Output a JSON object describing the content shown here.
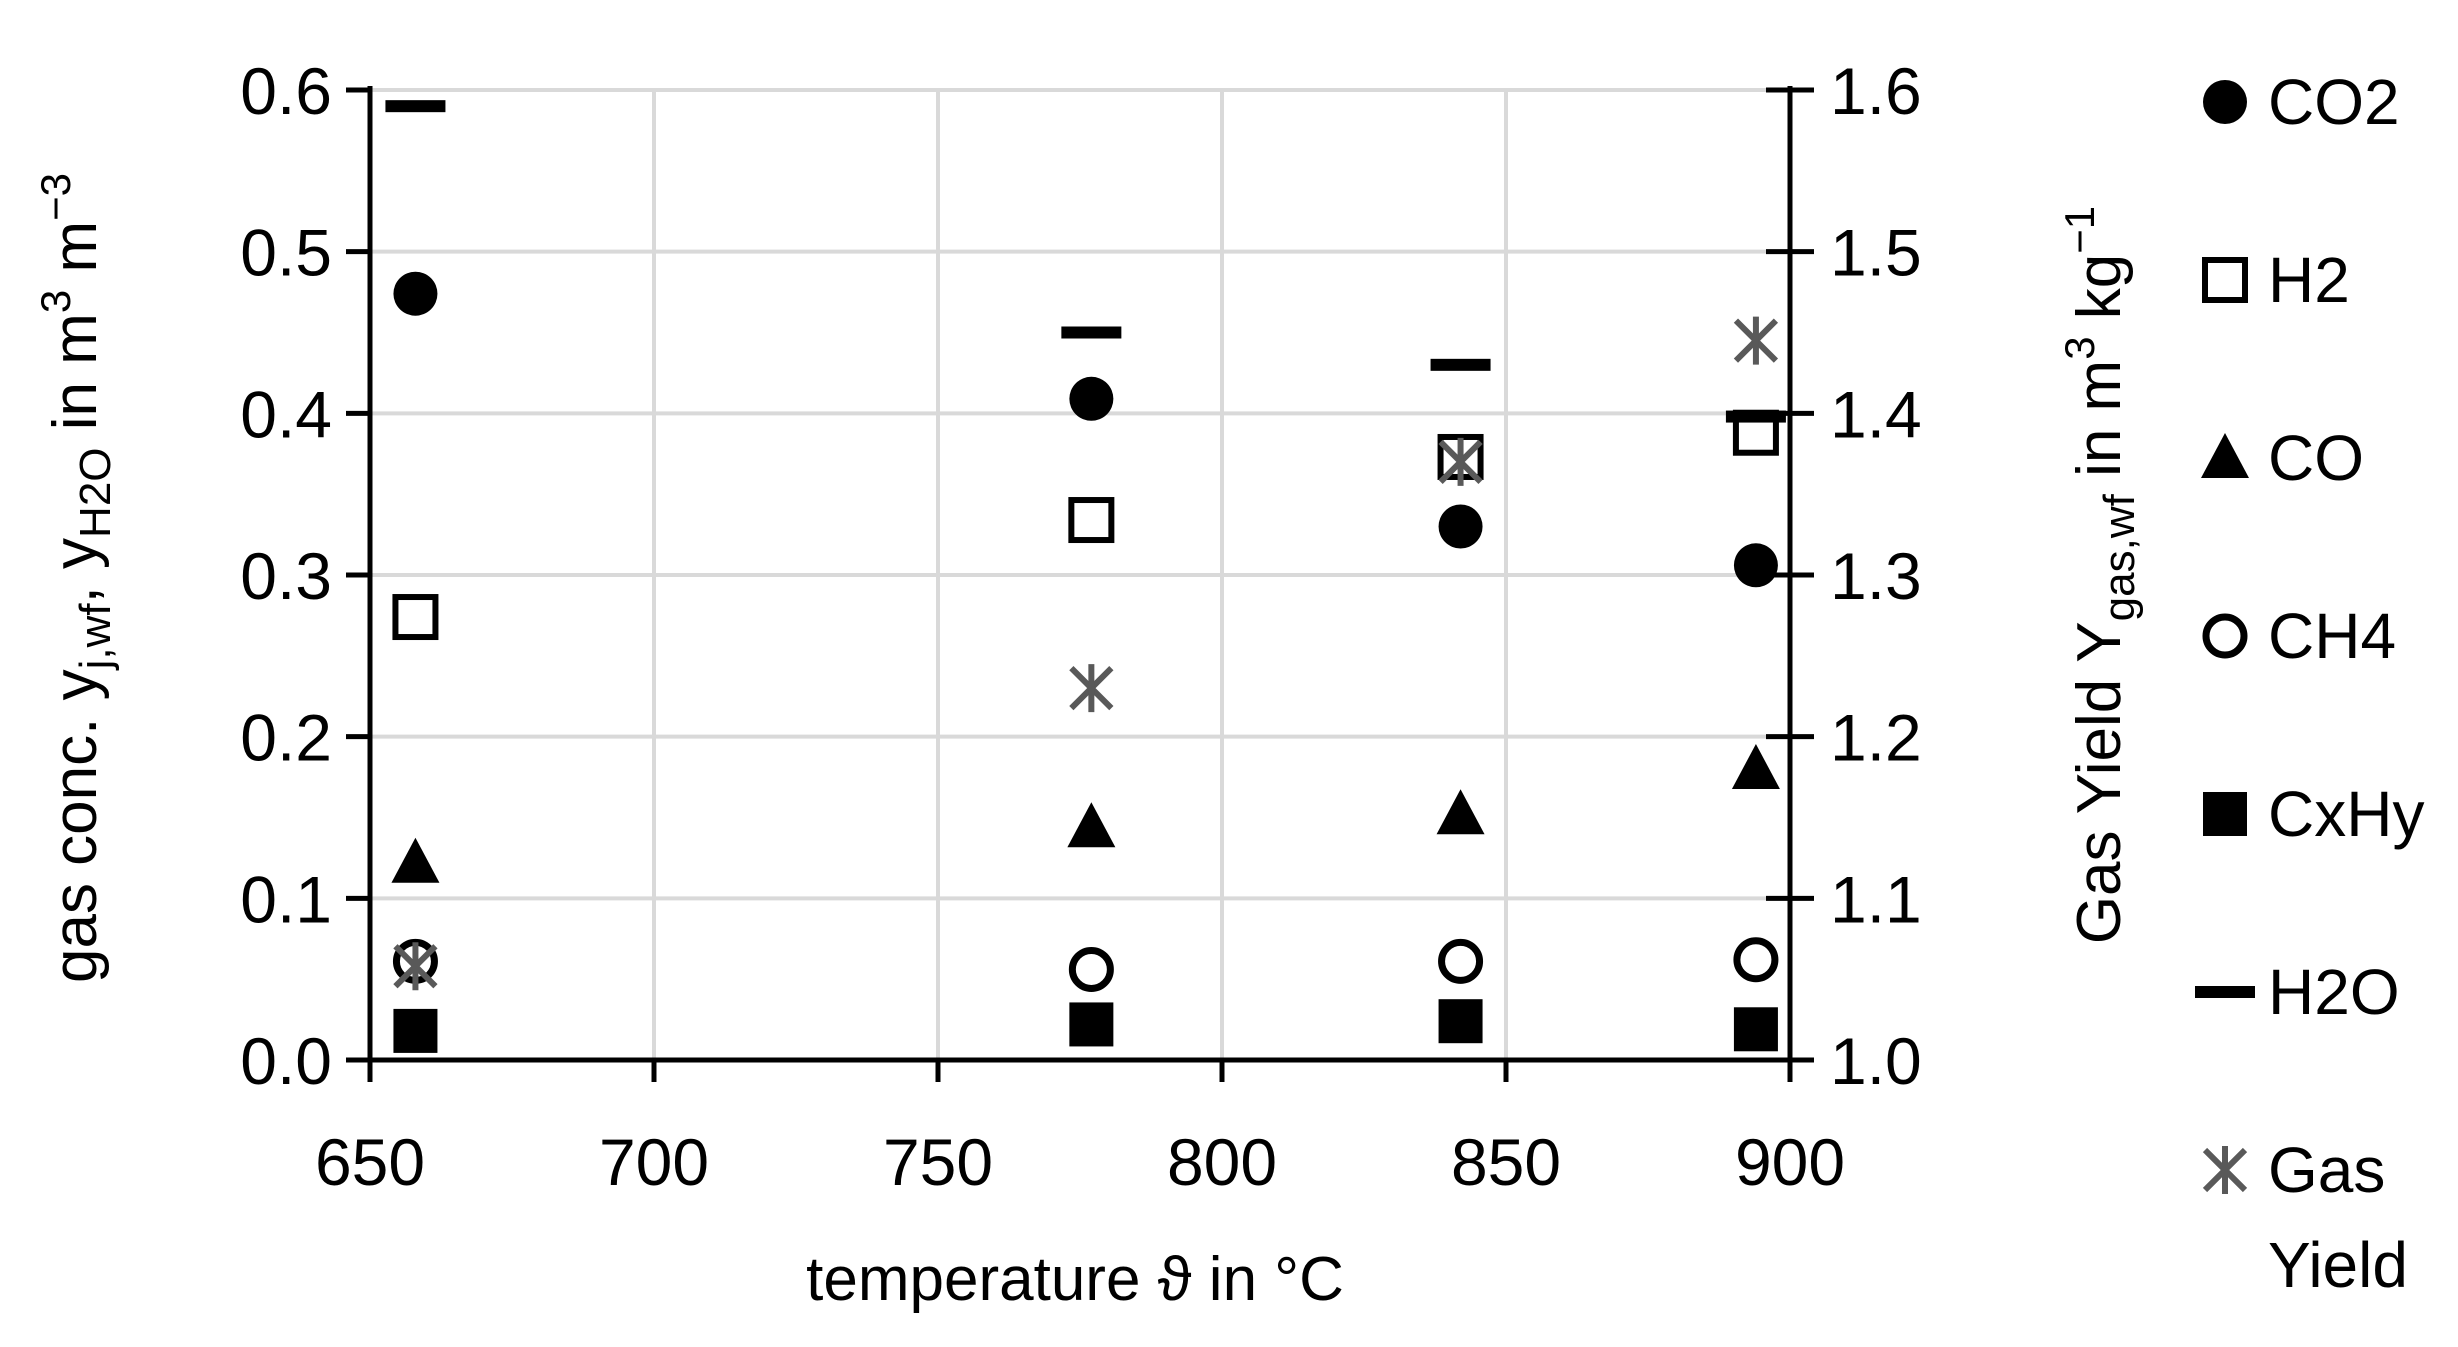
{
  "chart_data": {
    "type": "scatter",
    "xlabel": "temperature ϑ in °C",
    "ylabel_left": {
      "parts": [
        "gas conc. y",
        "j,wf",
        ",  y",
        "H2O",
        " in m",
        "3",
        " m",
        "−3"
      ]
    },
    "ylabel_right": {
      "parts": [
        "Gas Yield Y",
        "gas,wf",
        " in m",
        "3",
        " kg",
        "−1"
      ]
    },
    "xlim": [
      650,
      900
    ],
    "ylim_left": [
      0.0,
      0.6
    ],
    "ylim_right": [
      1.0,
      1.6
    ],
    "x_ticks": [
      "650",
      "700",
      "750",
      "800",
      "850",
      "900"
    ],
    "y_left_ticks": [
      "0.0",
      "0.1",
      "0.2",
      "0.3",
      "0.4",
      "0.5",
      "0.6"
    ],
    "y_right_ticks": [
      "1.0",
      "1.1",
      "1.2",
      "1.3",
      "1.4",
      "1.5",
      "1.6"
    ],
    "grid": true,
    "legend_position": "right",
    "series": [
      {
        "name": "CO2",
        "marker": "filled-circle",
        "axis": "left",
        "color": "#000000",
        "x": [
          658,
          777,
          842,
          894
        ],
        "y": [
          0.474,
          0.409,
          0.33,
          0.306
        ]
      },
      {
        "name": "H2",
        "marker": "open-square",
        "axis": "left",
        "color": "#000000",
        "x": [
          658,
          777,
          842,
          894
        ],
        "y": [
          0.274,
          0.334,
          0.373,
          0.388
        ]
      },
      {
        "name": "CO",
        "marker": "filled-triangle",
        "axis": "left",
        "color": "#000000",
        "x": [
          658,
          777,
          842,
          894
        ],
        "y": [
          0.122,
          0.144,
          0.152,
          0.18
        ]
      },
      {
        "name": "CH4",
        "marker": "open-circle",
        "axis": "left",
        "color": "#000000",
        "x": [
          658,
          777,
          842,
          894
        ],
        "y": [
          0.061,
          0.056,
          0.061,
          0.062
        ]
      },
      {
        "name": "CxHy",
        "marker": "filled-square",
        "axis": "left",
        "color": "#000000",
        "x": [
          658,
          777,
          842,
          894
        ],
        "y": [
          0.018,
          0.022,
          0.024,
          0.019
        ]
      },
      {
        "name": "H2O",
        "marker": "dash",
        "axis": "left",
        "color": "#000000",
        "x": [
          658,
          777,
          842,
          894
        ],
        "y": [
          0.59,
          0.45,
          0.43,
          0.398
        ]
      },
      {
        "name": "Gas Yield",
        "legend_lines": [
          "Gas",
          "Yield"
        ],
        "marker": "star",
        "axis": "right",
        "color": "#595959",
        "x": [
          658,
          777,
          842,
          894
        ],
        "y": [
          1.058,
          1.23,
          1.37,
          1.445
        ]
      }
    ]
  }
}
